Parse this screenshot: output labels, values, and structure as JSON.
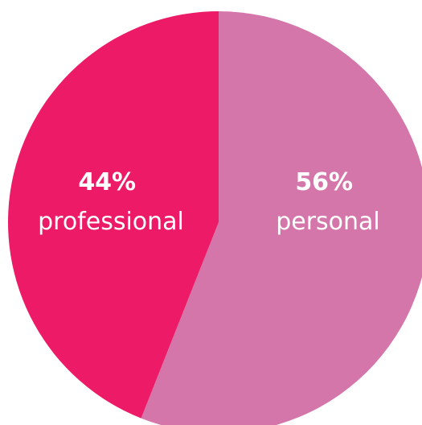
{
  "chart_data": {
    "type": "pie",
    "slices": [
      {
        "label": "personal",
        "value": 56,
        "value_label": "56%",
        "color": "#D576AA"
      },
      {
        "label": "professional",
        "value": 44,
        "value_label": "44%",
        "color": "#EC1A67"
      }
    ],
    "start": "top",
    "direction": "clockwise"
  }
}
